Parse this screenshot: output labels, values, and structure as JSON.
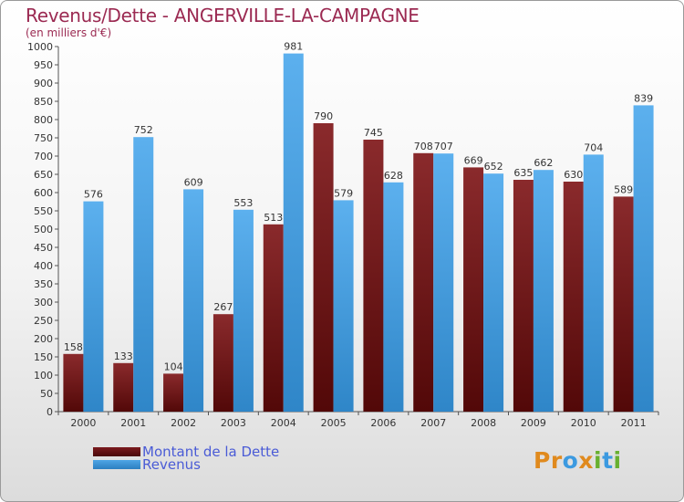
{
  "header": {
    "title": "Revenus/Dette - ANGERVILLE-LA-CAMPAGNE",
    "subtitle": "(en milliers d'€)"
  },
  "legend": {
    "debt_label": "Montant de la Dette",
    "revenue_label": "Revenus"
  },
  "logo": {
    "text": "Proxiti",
    "letters": [
      "P",
      "r",
      "o",
      "x",
      "i",
      "t",
      "i"
    ],
    "colors": [
      "#e08a1e",
      "#e08a1e",
      "#3c9ae0",
      "#e08a1e",
      "#68b030",
      "#3c9ae0",
      "#68b030"
    ]
  },
  "colors": {
    "debt": "#7a1a1e",
    "debt_dark": "#4a0808",
    "revenue": "#4fa6e6",
    "revenue_dark": "#2c7fc0",
    "title": "#9b2a52",
    "legend_text": "#4a5bd6"
  },
  "chart_data": {
    "type": "bar",
    "title": "Revenus/Dette - ANGERVILLE-LA-CAMPAGNE",
    "subtitle": "(en milliers d'€)",
    "xlabel": "",
    "ylabel": "",
    "ylim": [
      0,
      1000
    ],
    "yticks": [
      0,
      50,
      100,
      150,
      200,
      250,
      300,
      350,
      400,
      450,
      500,
      550,
      600,
      650,
      700,
      750,
      800,
      850,
      900,
      950,
      1000
    ],
    "grid": false,
    "legend_position": "bottom-left",
    "categories": [
      "2000",
      "2001",
      "2002",
      "2003",
      "2004",
      "2005",
      "2006",
      "2007",
      "2008",
      "2009",
      "2010",
      "2011"
    ],
    "series": [
      {
        "name": "Montant de la Dette",
        "values": [
          158,
          133,
          104,
          267,
          513,
          790,
          745,
          708,
          669,
          635,
          630,
          589
        ]
      },
      {
        "name": "Revenus",
        "values": [
          576,
          752,
          609,
          553,
          981,
          579,
          628,
          707,
          652,
          662,
          704,
          839
        ]
      }
    ]
  }
}
